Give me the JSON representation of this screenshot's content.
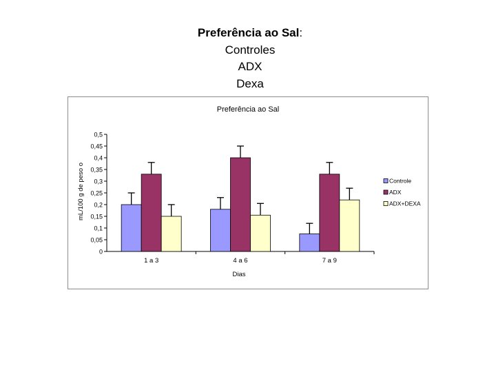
{
  "slide": {
    "title_bold": "Preferência ao Sal",
    "title_colon": ":",
    "lines": [
      "Controles",
      "ADX",
      "Dexa"
    ]
  },
  "chart_data": {
    "type": "bar",
    "title": "Preferência ao Sal",
    "xlabel": "Dias",
    "ylabel": "mL/100 g de peso     o",
    "categories": [
      "1 a 3",
      "4 a 6",
      "7 a 9"
    ],
    "ylim": [
      0,
      0.5
    ],
    "yticks": [
      "0",
      "0,05",
      "0,1",
      "0,15",
      "0,2",
      "0,25",
      "0,3",
      "0,35",
      "0,4",
      "0,45",
      "0,5"
    ],
    "grid": false,
    "legend_position": "right",
    "series": [
      {
        "name": "Controle",
        "color": "#9999ff",
        "values": [
          0.2,
          0.18,
          0.075
        ],
        "errors": [
          0.05,
          0.05,
          0.045
        ]
      },
      {
        "name": "ADX",
        "color": "#993366",
        "values": [
          0.33,
          0.4,
          0.33
        ],
        "errors": [
          0.05,
          0.05,
          0.05
        ]
      },
      {
        "name": "ADX+DEXA",
        "color": "#ffffcc",
        "values": [
          0.15,
          0.155,
          0.22
        ],
        "errors": [
          0.05,
          0.05,
          0.05
        ]
      }
    ]
  }
}
